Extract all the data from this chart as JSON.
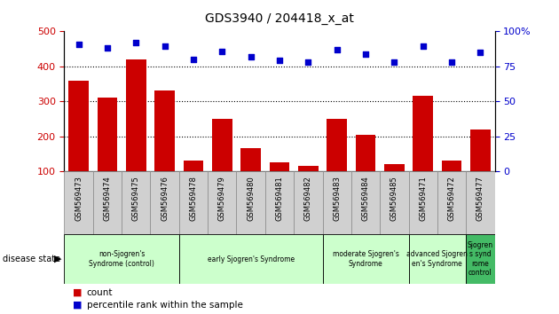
{
  "title": "GDS3940 / 204418_x_at",
  "samples": [
    "GSM569473",
    "GSM569474",
    "GSM569475",
    "GSM569476",
    "GSM569478",
    "GSM569479",
    "GSM569480",
    "GSM569481",
    "GSM569482",
    "GSM569483",
    "GSM569484",
    "GSM569485",
    "GSM569471",
    "GSM569472",
    "GSM569477"
  ],
  "counts": [
    360,
    310,
    420,
    330,
    130,
    250,
    165,
    125,
    115,
    250,
    205,
    120,
    315,
    130,
    220
  ],
  "percentile_values": [
    462,
    452,
    467,
    457,
    420,
    443,
    428,
    417,
    412,
    447,
    435,
    413,
    458,
    413,
    440
  ],
  "groups": [
    {
      "label": "non-Sjogren's\nSyndrome (control)",
      "start": 0,
      "end": 4,
      "color": "#ccffcc"
    },
    {
      "label": "early Sjogren's Syndrome",
      "start": 4,
      "end": 9,
      "color": "#ccffcc"
    },
    {
      "label": "moderate Sjogren's\nSyndrome",
      "start": 9,
      "end": 12,
      "color": "#ccffcc"
    },
    {
      "label": "advanced Sjogren\nen's Syndrome",
      "start": 12,
      "end": 14,
      "color": "#ccffcc"
    },
    {
      "label": "Sjogren\ns synd\nrome\ncontrol",
      "start": 14,
      "end": 15,
      "color": "#44bb66"
    }
  ],
  "ylim_left": [
    100,
    500
  ],
  "ylim_right": [
    0,
    100
  ],
  "bar_color": "#cc0000",
  "dot_color": "#0000cc",
  "left_tick_color": "#cc0000",
  "right_tick_color": "#0000cc",
  "sample_bg_color": "#d0d0d0",
  "grid_color": "black"
}
